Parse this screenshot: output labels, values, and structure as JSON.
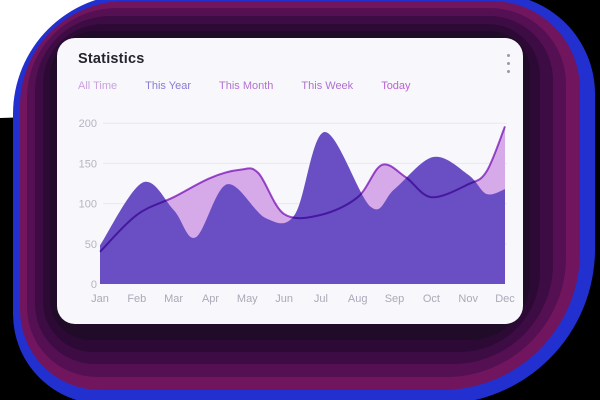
{
  "header": {
    "title": "Statistics",
    "menu_icon": "kebab-vertical-icon"
  },
  "tabs": [
    {
      "label": "All Time",
      "color": "#c9a2de",
      "active": true
    },
    {
      "label": "This Year",
      "color": "#8b7bd3",
      "active": false
    },
    {
      "label": "This Month",
      "color": "#b273d2",
      "active": false
    },
    {
      "label": "This Week",
      "color": "#ad72d0",
      "active": false
    },
    {
      "label": "Today",
      "color": "#bb62d4",
      "active": false
    }
  ],
  "chart_data": {
    "type": "area",
    "title": "",
    "xlabel": "",
    "ylabel": "",
    "categories": [
      "Jan",
      "Feb",
      "Mar",
      "Apr",
      "May",
      "Jun",
      "Jul",
      "Aug",
      "Sep",
      "Oct",
      "Nov",
      "Dec"
    ],
    "ylim": [
      0,
      200
    ],
    "yticks": [
      0,
      50,
      100,
      150,
      200
    ],
    "grid": true,
    "legend": "none",
    "series": [
      {
        "name": "light-series",
        "position": "behind",
        "fill": "#d6a9e8",
        "stroke": "#a44fd0",
        "values": [
          40,
          86,
          108,
          132,
          140,
          87,
          86,
          108,
          140,
          108,
          124,
          196
        ],
        "curve_points": [
          [
            0,
            40
          ],
          [
            1,
            86
          ],
          [
            2,
            108
          ],
          [
            3,
            132
          ],
          [
            3.8,
            142
          ],
          [
            4.3,
            138
          ],
          [
            5,
            87
          ],
          [
            6,
            86
          ],
          [
            7,
            108
          ],
          [
            7.65,
            148
          ],
          [
            8.3,
            133
          ],
          [
            9,
            108
          ],
          [
            10,
            124
          ],
          [
            10.5,
            140
          ],
          [
            11,
            196
          ]
        ]
      },
      {
        "name": "dark-series",
        "position": "front",
        "fill": "#6a4ec4",
        "stroke": "",
        "values": [
          48,
          125,
          90,
          120,
          85,
          88,
          188,
          96,
          118,
          158,
          136,
          118
        ],
        "curve_points": [
          [
            0,
            48
          ],
          [
            1.15,
            126
          ],
          [
            2,
            92
          ],
          [
            2.6,
            58
          ],
          [
            3.45,
            124
          ],
          [
            4.5,
            82
          ],
          [
            5.3,
            87
          ],
          [
            6.1,
            189
          ],
          [
            7.35,
            96
          ],
          [
            8,
            118
          ],
          [
            9.05,
            158
          ],
          [
            10,
            136
          ],
          [
            10.5,
            112
          ],
          [
            11,
            118
          ]
        ]
      }
    ]
  },
  "colors": {
    "page_base": "#000000",
    "corner_light": "#ffffff",
    "glow_rings": [
      "#2230cf",
      "#71155f",
      "#541052",
      "#3d0c44",
      "#2d0a35",
      "#200b29"
    ],
    "card_bg": "#f8f7fb",
    "title_text": "#26242e",
    "grid_line": "#e9e9f1",
    "y_label": "#b6b4c2",
    "x_label": "#aba9b8",
    "kebab_dots": "#9b99a8"
  }
}
